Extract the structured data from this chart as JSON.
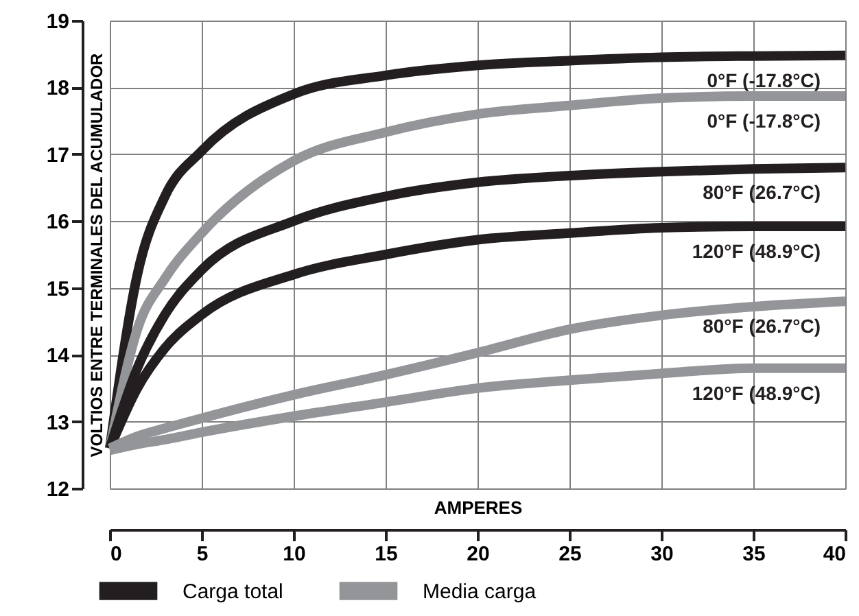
{
  "chart_data": {
    "type": "line",
    "xlabel": "AMPERES",
    "ylabel": "VOLTIOS ENTRE TERMINALES DEL ACUMULADOR",
    "x": [
      0,
      1.5,
      3,
      5,
      10,
      15,
      20,
      25,
      30,
      35,
      40
    ],
    "series": [
      {
        "name": "Carga total",
        "color": "#231f20",
        "values": [
          12.6,
          15.2,
          16.37,
          17.05,
          17.9,
          18.18,
          18.33,
          18.4,
          18.45,
          18.47,
          18.48
        ]
      },
      {
        "name": "Media carga",
        "color": "#939598",
        "values": [
          12.6,
          14.38,
          15.14,
          15.82,
          16.9,
          17.33,
          17.6,
          17.73,
          17.84,
          17.87,
          17.87
        ]
      },
      {
        "color": "#231f20",
        "values": [
          12.6,
          13.8,
          14.6,
          15.27,
          16.0,
          16.37,
          16.58,
          16.68,
          16.74,
          16.78,
          16.8
        ]
      },
      {
        "color": "#231f20",
        "values": [
          12.6,
          13.5,
          14.1,
          14.6,
          15.2,
          15.5,
          15.72,
          15.82,
          15.9,
          15.92,
          15.92
        ]
      },
      {
        "color": "#939598",
        "values": [
          12.6,
          12.78,
          12.9,
          13.05,
          13.4,
          13.7,
          14.03,
          14.38,
          14.59,
          14.72,
          14.8
        ]
      },
      {
        "color": "#939598",
        "values": [
          12.57,
          12.66,
          12.73,
          12.84,
          13.08,
          13.29,
          13.5,
          13.62,
          13.72,
          13.8,
          13.8
        ]
      }
    ],
    "annotations": [
      "0°F (-17.8°C)",
      "0°F (-17.8°C)",
      "80°F (26.7°C)",
      "120°F (48.9°C)",
      "80°F (26.7°C)",
      "120°F  (48.9°C)"
    ],
    "xlim": [
      0,
      40
    ],
    "xticks": [
      0,
      5,
      10,
      15,
      20,
      25,
      30,
      35,
      40
    ],
    "ylim": [
      12,
      19
    ],
    "yticks": [
      12,
      13,
      14,
      15,
      16,
      17,
      18,
      19
    ],
    "grid": true,
    "legend": "bottom",
    "line_style": "solid",
    "marker": "none"
  }
}
